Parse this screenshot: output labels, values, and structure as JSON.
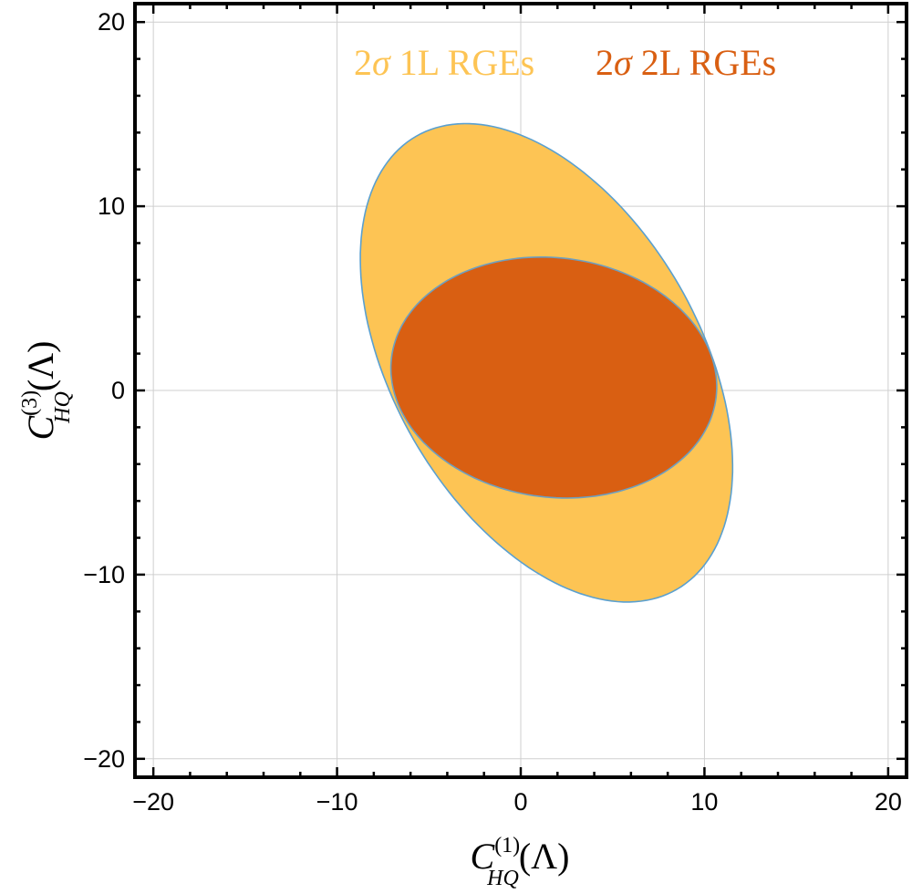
{
  "chart_data": {
    "type": "contour",
    "xlim": [
      -21,
      21
    ],
    "ylim": [
      -21,
      21
    ],
    "xticks": [
      -20,
      -10,
      0,
      10,
      20
    ],
    "yticks": [
      -20,
      -10,
      0,
      10,
      20
    ],
    "xtick_labels": [
      "−20",
      "−10",
      "0",
      "10",
      "20"
    ],
    "ytick_labels": [
      "−20",
      "−10",
      "0",
      "10",
      "20"
    ],
    "grid": true,
    "xlabel": {
      "symbol": "C",
      "superscript": "(1)",
      "subscript": "HQ",
      "argument": "(Λ)"
    },
    "ylabel": {
      "symbol": "C",
      "superscript": "(3)",
      "subscript": "HQ",
      "argument": "(Λ)"
    },
    "legend": {
      "placement": "top-center",
      "items": [
        {
          "prefix": "2",
          "sigma": "σ",
          "text": " 1L RGEs",
          "color": "#fdc454"
        },
        {
          "prefix": "2",
          "sigma": "σ",
          "text": " 2L RGEs",
          "color": "#d95f12"
        }
      ]
    },
    "series": [
      {
        "name": "2σ 1L RGEs",
        "fill": "#fdc454",
        "stroke": "#5aa0d0",
        "center": [
          1.4,
          1.5
        ],
        "semi_major": 14.2,
        "semi_minor": 8.35,
        "angle_deg": -60
      },
      {
        "name": "2σ 2L RGEs",
        "fill": "#d95f12",
        "stroke": "#6d9fc0",
        "center": [
          1.8,
          0.7
        ],
        "semi_major": 8.9,
        "semi_minor": 6.5,
        "angle_deg": -7
      }
    ]
  }
}
